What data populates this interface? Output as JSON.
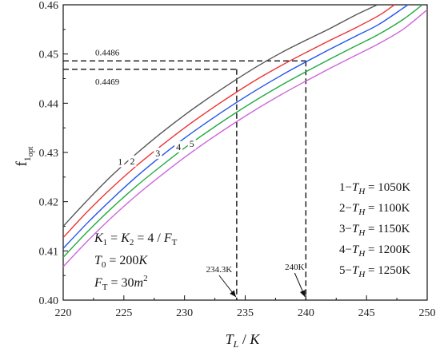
{
  "chart_data": {
    "type": "line",
    "xlabel": {
      "main": "T",
      "sub": "L",
      "unit": "K"
    },
    "ylabel": {
      "main": "f",
      "sub1": "1",
      "sub2": "opt"
    },
    "xlim": [
      220,
      250
    ],
    "ylim": [
      0.4,
      0.46
    ],
    "x_ticks": [
      "220",
      "225",
      "230",
      "235",
      "240",
      "245",
      "250"
    ],
    "y_ticks": [
      "0.40",
      "0.41",
      "0.42",
      "0.43",
      "0.44",
      "0.45",
      "0.46"
    ],
    "grid": false,
    "series": [
      {
        "name": "1",
        "color": "#555555",
        "x": [
          220,
          222,
          224,
          226,
          228,
          230,
          232,
          234,
          236,
          238,
          240,
          242,
          244,
          245.9
        ],
        "y": [
          0.415,
          0.4203,
          0.4253,
          0.4297,
          0.4338,
          0.4376,
          0.4411,
          0.4444,
          0.4475,
          0.4503,
          0.4528,
          0.4552,
          0.4578,
          0.46
        ]
      },
      {
        "name": "2",
        "color": "#ee3333",
        "x": [
          220,
          222,
          224,
          226,
          228,
          230,
          232,
          234,
          236,
          238,
          240,
          242,
          244,
          246,
          247.3
        ],
        "y": [
          0.4127,
          0.418,
          0.4228,
          0.4272,
          0.4312,
          0.435,
          0.4385,
          0.4418,
          0.4449,
          0.4477,
          0.4503,
          0.4528,
          0.4552,
          0.4578,
          0.46
        ]
      },
      {
        "name": "3",
        "color": "#2255ee",
        "x": [
          220,
          222,
          224,
          226,
          228,
          230,
          232,
          234,
          236,
          238,
          240,
          242,
          244,
          246,
          248,
          248.4
        ],
        "y": [
          0.4105,
          0.4157,
          0.4205,
          0.425,
          0.4291,
          0.4329,
          0.4364,
          0.4397,
          0.4428,
          0.4457,
          0.4484,
          0.451,
          0.4535,
          0.456,
          0.4593,
          0.46
        ]
      },
      {
        "name": "4",
        "color": "#22aa44",
        "x": [
          220,
          222,
          224,
          226,
          228,
          230,
          232,
          234,
          236,
          238,
          240,
          242,
          244,
          246,
          248,
          249.6
        ],
        "y": [
          0.4087,
          0.4139,
          0.4187,
          0.4231,
          0.4271,
          0.4309,
          0.4344,
          0.4377,
          0.4408,
          0.4437,
          0.4464,
          0.449,
          0.4515,
          0.454,
          0.457,
          0.46
        ]
      },
      {
        "name": "5",
        "color": "#cc66dd",
        "x": [
          220,
          222,
          224,
          226,
          228,
          230,
          232,
          234,
          236,
          238,
          240,
          242,
          244,
          246,
          248,
          250
        ],
        "y": [
          0.4068,
          0.412,
          0.4168,
          0.4212,
          0.4252,
          0.429,
          0.4325,
          0.4358,
          0.4389,
          0.4418,
          0.4445,
          0.4471,
          0.4496,
          0.4521,
          0.455,
          0.459
        ]
      }
    ],
    "curve_labels": [
      {
        "text": "1",
        "x": 224.7,
        "y": 0.4275
      },
      {
        "text": "2",
        "x": 225.7,
        "y": 0.4276
      },
      {
        "text": "3",
        "x": 227.8,
        "y": 0.4292
      },
      {
        "text": "4",
        "x": 229.5,
        "y": 0.4305
      },
      {
        "text": "5",
        "x": 230.6,
        "y": 0.4311
      }
    ],
    "reference_lines": [
      {
        "y": 0.4486,
        "x_end": 240.0,
        "label": "0.4486"
      },
      {
        "y": 0.4469,
        "x_end": 234.3,
        "label": "0.4469"
      }
    ],
    "arrow_annotations": [
      {
        "label": "234.3K",
        "x": 234.3,
        "y": 0.4
      },
      {
        "label": "240K",
        "x": 240.0,
        "y": 0.4
      }
    ],
    "legend_entries": [
      {
        "index": "1",
        "symbol": "T",
        "sub": "H",
        "value": "1050K"
      },
      {
        "index": "2",
        "symbol": "T",
        "sub": "H",
        "value": "1100K"
      },
      {
        "index": "3",
        "symbol": "T",
        "sub": "H",
        "value": "1150K"
      },
      {
        "index": "4",
        "symbol": "T",
        "sub": "H",
        "value": "1200K"
      },
      {
        "index": "5",
        "symbol": "T",
        "sub": "H",
        "value": "1250K"
      }
    ],
    "legend_placement": "lower-right",
    "parameters": {
      "k_line": {
        "k1": "K",
        "k1_sub": "1",
        "eq": " = ",
        "k2": "K",
        "k2_sub": "2",
        "rhs": " = 4 / ",
        "f": "F",
        "f_sub": "T"
      },
      "t0_line": {
        "t": "T",
        "t_sub": "0",
        "rhs": " = 200",
        "unit": "K"
      },
      "ft_line": {
        "f": "F",
        "f_sub": "T",
        "rhs": " = 30",
        "unit": "m",
        "sup": "2"
      }
    }
  }
}
